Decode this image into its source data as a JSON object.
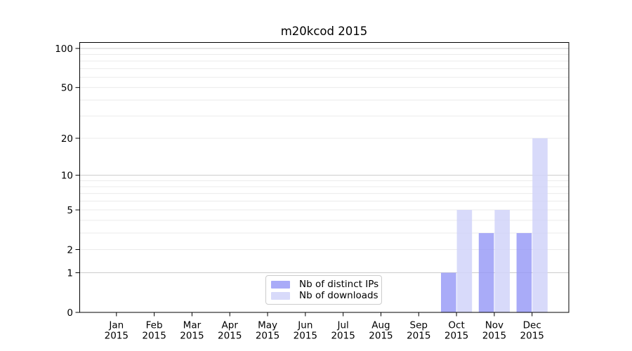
{
  "title": "m20kcod 2015",
  "chart_data": {
    "type": "bar",
    "title": "m20kcod 2015",
    "xlabel": "",
    "ylabel": "",
    "categories": [
      "Jan",
      "Feb",
      "Mar",
      "Apr",
      "May",
      "Jun",
      "Jul",
      "Aug",
      "Sep",
      "Oct",
      "Nov",
      "Dec"
    ],
    "category_year": "2015",
    "series": [
      {
        "name": "Nb of distinct IPs",
        "color": "rgba(148,150,246,0.8)",
        "swatch_hex": "#a9abf8",
        "values": [
          0,
          0,
          0,
          0,
          0,
          0,
          0,
          0,
          0,
          1,
          3,
          3
        ]
      },
      {
        "name": "Nb of downloads",
        "color": "rgba(209,211,249,0.85)",
        "swatch_hex": "#d9daf9",
        "values": [
          0,
          0,
          0,
          0,
          0,
          0,
          0,
          0,
          0,
          5,
          5,
          20
        ]
      }
    ],
    "yscale": "log1p",
    "ylim": [
      0,
      111
    ],
    "yticks_labeled": [
      0,
      1,
      2,
      5,
      10,
      20,
      50,
      100
    ],
    "grid_major": [
      1,
      10,
      100
    ],
    "grid_minor": [
      2,
      3,
      4,
      5,
      6,
      7,
      8,
      9,
      20,
      30,
      40,
      50,
      60,
      70,
      80,
      90
    ],
    "grid_major_color": "#cccccc",
    "grid_minor_color": "#ebebeb",
    "legend_position": "lower center"
  }
}
